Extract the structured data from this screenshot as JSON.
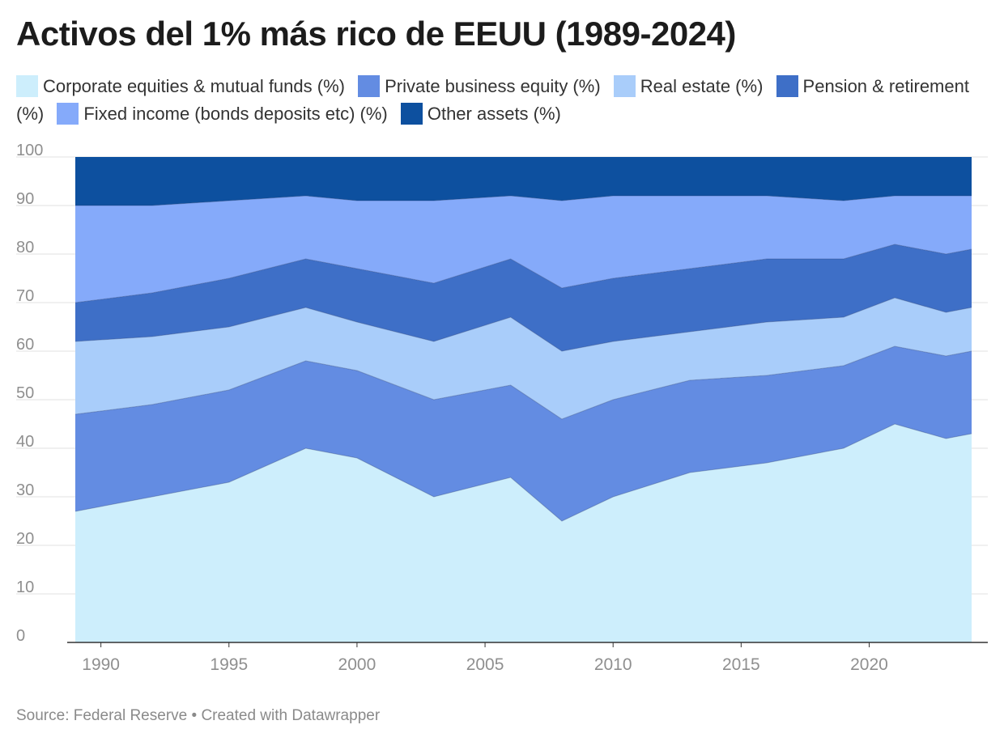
{
  "header": {
    "title": "Activos del 1% más rico de EEUU (1989-2024)"
  },
  "footer": {
    "source": "Source: Federal Reserve",
    "separator": " • ",
    "credit": "Created with Datawrapper"
  },
  "chart_data": {
    "type": "area",
    "stacked": true,
    "title": "Activos del 1% más rico de EEUU (1989-2024)",
    "xlabel": "",
    "ylabel": "",
    "x": [
      1989,
      1992,
      1995,
      1998,
      2001,
      2004,
      2007,
      2010,
      2013,
      2016,
      2019,
      2022,
      2024
    ],
    "xlim": [
      1989,
      2024
    ],
    "ylim": [
      0,
      100
    ],
    "x_ticks": [
      1990,
      1995,
      2000,
      2005,
      2010,
      2015,
      2020
    ],
    "y_ticks": [
      0,
      10,
      20,
      30,
      40,
      50,
      60,
      70,
      80,
      90,
      100
    ],
    "grid": true,
    "legend_position": "top",
    "series": [
      {
        "name": "Corporate equities & mutual funds (%)",
        "color": "#cdeefc",
        "values": [
          27,
          30,
          33,
          40,
          38,
          30,
          34,
          25,
          30,
          35,
          37,
          40,
          45,
          42,
          43
        ],
        "x": [
          1989,
          1992,
          1995,
          1998,
          2000,
          2003,
          2006,
          2008,
          2010,
          2013,
          2016,
          2019,
          2021,
          2023,
          2024
        ]
      },
      {
        "name": "Private business equity (%)",
        "color": "#638ce2",
        "values": [
          20,
          19,
          19,
          18,
          18,
          20,
          19,
          21,
          20,
          19,
          18,
          17,
          16,
          17,
          17
        ],
        "x": [
          1989,
          1992,
          1995,
          1998,
          2000,
          2003,
          2006,
          2008,
          2010,
          2013,
          2016,
          2019,
          2021,
          2023,
          2024
        ]
      },
      {
        "name": "Real estate (%)",
        "color": "#a9cdfa",
        "values": [
          15,
          14,
          13,
          11,
          10,
          12,
          14,
          14,
          12,
          10,
          11,
          10,
          10,
          9,
          9
        ],
        "x": [
          1989,
          1992,
          1995,
          1998,
          2000,
          2003,
          2006,
          2008,
          2010,
          2013,
          2016,
          2019,
          2021,
          2023,
          2024
        ]
      },
      {
        "name": "Pension & retirement (%)",
        "color": "#3e6fc7",
        "values": [
          8,
          9,
          10,
          10,
          11,
          12,
          12,
          13,
          13,
          13,
          13,
          12,
          11,
          12,
          12
        ],
        "x": [
          1989,
          1992,
          1995,
          1998,
          2000,
          2003,
          2006,
          2008,
          2010,
          2013,
          2016,
          2019,
          2021,
          2023,
          2024
        ]
      },
      {
        "name": "Fixed income (bonds deposits etc) (%)",
        "color": "#85aafa",
        "values": [
          20,
          18,
          16,
          13,
          14,
          17,
          13,
          18,
          17,
          15,
          13,
          12,
          10,
          12,
          11
        ],
        "x": [
          1989,
          1992,
          1995,
          1998,
          2000,
          2003,
          2006,
          2008,
          2010,
          2013,
          2016,
          2019,
          2021,
          2023,
          2024
        ]
      },
      {
        "name": "Other assets (%)",
        "color": "#0d509f",
        "values": [
          10,
          10,
          9,
          8,
          9,
          9,
          8,
          9,
          8,
          8,
          8,
          9,
          8,
          8,
          8
        ],
        "x": [
          1989,
          1992,
          1995,
          1998,
          2000,
          2003,
          2006,
          2008,
          2010,
          2013,
          2016,
          2019,
          2021,
          2023,
          2024
        ]
      }
    ]
  }
}
